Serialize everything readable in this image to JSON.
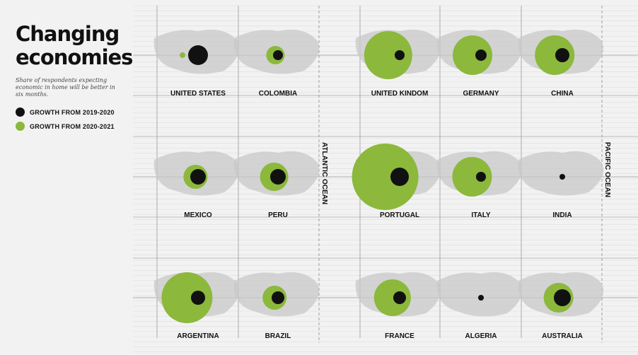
{
  "title_line1": "Changing",
  "title_line2": "economies",
  "subtitle": "Share of respondents expecting economic in home will be better in six months.",
  "colors": {
    "black": "#111111",
    "green": "#8cb83c",
    "map": "#c8c8c8",
    "grid": "#dddddd"
  },
  "oceans": [
    {
      "label": "ATLANTIC OCEAN"
    },
    {
      "label": "PACIFIC OCEAN"
    }
  ],
  "chart_data": {
    "type": "scatter",
    "title": "Changing economies",
    "legend": [
      {
        "name": "GROWTH FROM 2019-2020",
        "color": "#111111"
      },
      {
        "name": "GROWTH FROM 2020-2021",
        "color": "#8cb83c"
      }
    ],
    "legend_position": "left",
    "grid": true,
    "countries": [
      {
        "name": "UNITED STATES",
        "row": 0,
        "col": 0,
        "growth_2019_2020": 14,
        "growth_2020_2021": 4
      },
      {
        "name": "COLOMBIA",
        "row": 0,
        "col": 1,
        "growth_2019_2020": 7,
        "growth_2020_2021": 13
      },
      {
        "name": "UNITED KINDOM",
        "row": 0,
        "col": 2,
        "growth_2019_2020": 7,
        "growth_2020_2021": 34
      },
      {
        "name": "GERMANY",
        "row": 0,
        "col": 3,
        "growth_2019_2020": 8,
        "growth_2020_2021": 28
      },
      {
        "name": "CHINA",
        "row": 0,
        "col": 4,
        "growth_2019_2020": 10,
        "growth_2020_2021": 28
      },
      {
        "name": "MEXICO",
        "row": 1,
        "col": 0,
        "growth_2019_2020": 11,
        "growth_2020_2021": 17
      },
      {
        "name": "PERU",
        "row": 1,
        "col": 1,
        "growth_2019_2020": 11,
        "growth_2020_2021": 20
      },
      {
        "name": "PORTUGAL",
        "row": 1,
        "col": 2,
        "growth_2019_2020": 13,
        "growth_2020_2021": 47
      },
      {
        "name": "ITALY",
        "row": 1,
        "col": 3,
        "growth_2019_2020": 7,
        "growth_2020_2021": 28
      },
      {
        "name": "INDIA",
        "row": 1,
        "col": 4,
        "growth_2019_2020": 4,
        "growth_2020_2021": 4
      },
      {
        "name": "ARGENTINA",
        "row": 2,
        "col": 0,
        "growth_2019_2020": 10,
        "growth_2020_2021": 36
      },
      {
        "name": "BRAZIL",
        "row": 2,
        "col": 1,
        "growth_2019_2020": 9,
        "growth_2020_2021": 17
      },
      {
        "name": "FRANCE",
        "row": 2,
        "col": 2,
        "growth_2019_2020": 9,
        "growth_2020_2021": 26
      },
      {
        "name": "ALGERIA",
        "row": 2,
        "col": 3,
        "growth_2019_2020": 4,
        "growth_2020_2021": 4
      },
      {
        "name": "AUSTRALIA",
        "row": 2,
        "col": 4,
        "growth_2019_2020": 12,
        "growth_2020_2021": 21
      }
    ]
  }
}
